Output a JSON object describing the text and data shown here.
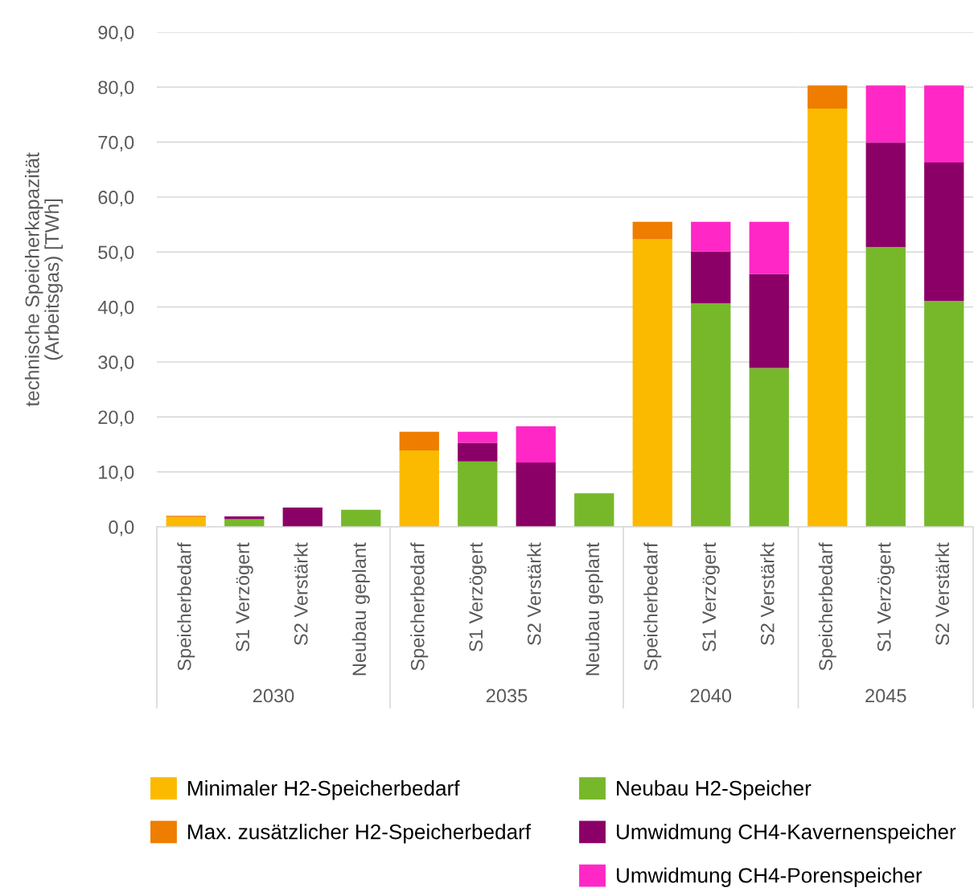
{
  "chart_data": [
    {
      "type": "bar",
      "stacked": true,
      "xlabel": "2030",
      "ylabel": "technische Speicherkapazität\n(Arbeitsgas) [TWh]",
      "categories": [
        "Speicherbedarf",
        "S1 Verzögert",
        "S2 Verstärkt",
        "Neubau geplant"
      ],
      "series": [
        {
          "name": "Minimaler H2-Speicherbedarf",
          "color": "#fbba00",
          "values": [
            1.8,
            null,
            null,
            null
          ]
        },
        {
          "name": "Max. zusätzlicher H2-Speicherbedarf",
          "color": "#ee7d00",
          "values": [
            0.2,
            null,
            null,
            null
          ]
        },
        {
          "name": "Neubau H2-Speicher",
          "color": "#77b82b",
          "values": [
            null,
            1.4,
            null,
            3.1
          ]
        },
        {
          "name": "Umwidmung CH4-Kavernenspeicher",
          "color": "#8b0067",
          "values": [
            null,
            0.5,
            3.5,
            null
          ]
        },
        {
          "name": "Umwidmung CH4-Porenspeicher",
          "color": "#ff28c6",
          "values": [
            null,
            null,
            null,
            null
          ]
        }
      ],
      "ylim": [
        0,
        90
      ],
      "yticks": [
        {
          "value": 0,
          "label": "0,0"
        },
        {
          "value": 10,
          "label": "10,0"
        },
        {
          "value": 20,
          "label": "20,0"
        },
        {
          "value": 30,
          "label": "30,0"
        },
        {
          "value": 40,
          "label": "40,0"
        },
        {
          "value": 50,
          "label": "50,0"
        },
        {
          "value": 60,
          "label": "60,0"
        },
        {
          "value": 70,
          "label": "70,0"
        },
        {
          "value": 80,
          "label": "80,0"
        },
        {
          "value": 90,
          "label": "90,0"
        }
      ],
      "grid": "y",
      "legend": "bottom"
    },
    {
      "type": "bar",
      "stacked": true,
      "xlabel": "2035",
      "categories": [
        "Speicherbedarf",
        "S1 Verzögert",
        "S2 Verstärkt",
        "Neubau geplant"
      ],
      "series": [
        {
          "color": "#fbba00",
          "values": [
            13.9,
            null,
            null,
            null
          ]
        },
        {
          "color": "#ee7d00",
          "values": [
            3.4,
            null,
            null,
            null
          ]
        },
        {
          "color": "#77b82b",
          "values": [
            null,
            11.9,
            null,
            6.1
          ]
        },
        {
          "color": "#8b0067",
          "values": [
            null,
            3.4,
            11.7,
            null
          ]
        },
        {
          "color": "#ff28c6",
          "values": [
            null,
            2.0,
            6.6,
            null
          ]
        }
      ],
      "ylim": [
        0,
        90
      ],
      "yticks": [
        0,
        10,
        20,
        30,
        40,
        50,
        60,
        70,
        80,
        90
      ],
      "grid": "y",
      "tick_labels": "x"
    },
    {
      "type": "bar",
      "stacked": true,
      "xlabel": "2040",
      "categories": [
        "Speicherbedarf",
        "S1 Verzögert",
        "S2 Verstärkt"
      ],
      "series": [
        {
          "color": "#fbba00",
          "values": [
            52.3,
            null,
            null
          ]
        },
        {
          "color": "#ee7d00",
          "values": [
            3.2,
            null,
            null
          ]
        },
        {
          "color": "#77b82b",
          "values": [
            null,
            40.7,
            28.9
          ]
        },
        {
          "color": "#8b0067",
          "values": [
            null,
            9.4,
            17.1
          ]
        },
        {
          "color": "#ff28c6",
          "values": [
            null,
            5.4,
            9.5
          ]
        }
      ],
      "ylim": [
        0,
        90
      ],
      "yticks": [
        0,
        10,
        20,
        30,
        40,
        50,
        60,
        70,
        80,
        90
      ],
      "grid": "y",
      "tick_labels": "x"
    },
    {
      "type": "bar",
      "stacked": true,
      "xlabel": "2045",
      "categories": [
        "Speicherbedarf",
        "S1 Verzögert",
        "S2 Verstärkt"
      ],
      "series": [
        {
          "color": "#fbba00",
          "values": [
            76.1,
            null,
            null
          ]
        },
        {
          "color": "#ee7d00",
          "values": [
            4.2,
            null,
            null
          ]
        },
        {
          "color": "#77b82b",
          "values": [
            null,
            50.9,
            41.1
          ]
        },
        {
          "color": "#8b0067",
          "values": [
            null,
            19.0,
            25.2
          ]
        },
        {
          "color": "#ff28c6",
          "values": [
            null,
            10.4,
            14.0
          ]
        }
      ],
      "ylim": [
        0,
        90
      ],
      "yticks": [
        0,
        10,
        20,
        30,
        40,
        50,
        60,
        70,
        80,
        90
      ],
      "grid": "y",
      "tick_labels": "x"
    }
  ]
}
